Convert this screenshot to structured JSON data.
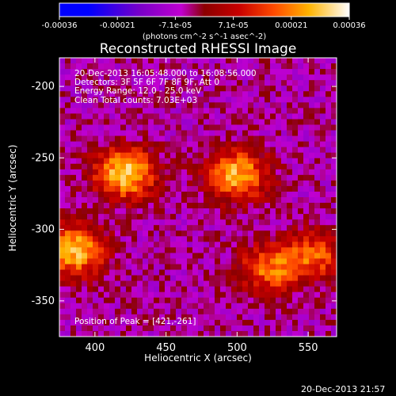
{
  "colors": {
    "background": "#000000",
    "foreground": "#ffffff"
  },
  "colorbar": {
    "tick_labels": [
      "-0.00036",
      "-0.00021",
      "-7.1e-05",
      "7.1e-05",
      "0.00021",
      "0.00036"
    ],
    "units": "(photons cm^-2 s^-1 asec^-2)",
    "range": [
      -0.00036,
      0.00036
    ]
  },
  "plot": {
    "title": "Reconstructed RHESSI Image",
    "xlabel": "Heliocentric X (arcsec)",
    "ylabel": "Heliocentric Y (arcsec)",
    "xlim": [
      375,
      570
    ],
    "ylim": [
      -375,
      -180
    ],
    "xticks": [
      "400",
      "450",
      "500",
      "550"
    ],
    "yticks": [
      "-200",
      "-250",
      "-300",
      "-350"
    ]
  },
  "overlay": {
    "time_range": "20-Dec-2013 16:05:48.000 to 16:08:56.000",
    "detectors": "Detectors: 3F 5F 6F 7F 8F 9F, Att 0",
    "energy_range": "Energy Range: 12.0 - 25.0 keV",
    "clean_counts": "Clean    Total counts: 7.03E+03",
    "peak_position": "Position of Peak = [421,-261]"
  },
  "footer": {
    "timestamp": "20-Dec-2013 21:57"
  },
  "chart_data": {
    "type": "heatmap",
    "title": "Reconstructed RHESSI Image",
    "xlabel": "Heliocentric X (arcsec)",
    "ylabel": "Heliocentric Y (arcsec)",
    "xlim": [
      375,
      570
    ],
    "ylim": [
      -375,
      -180
    ],
    "colorbar_range": [
      -0.00036,
      0.00036
    ],
    "sources": [
      {
        "x": 421,
        "y": -261,
        "value": 0.00036
      },
      {
        "x": 500,
        "y": -262,
        "value": 0.00032
      },
      {
        "x": 385,
        "y": -315,
        "value": 0.00034
      },
      {
        "x": 522,
        "y": -328,
        "value": 0.00024
      },
      {
        "x": 555,
        "y": -318,
        "value": 0.00022
      }
    ]
  }
}
